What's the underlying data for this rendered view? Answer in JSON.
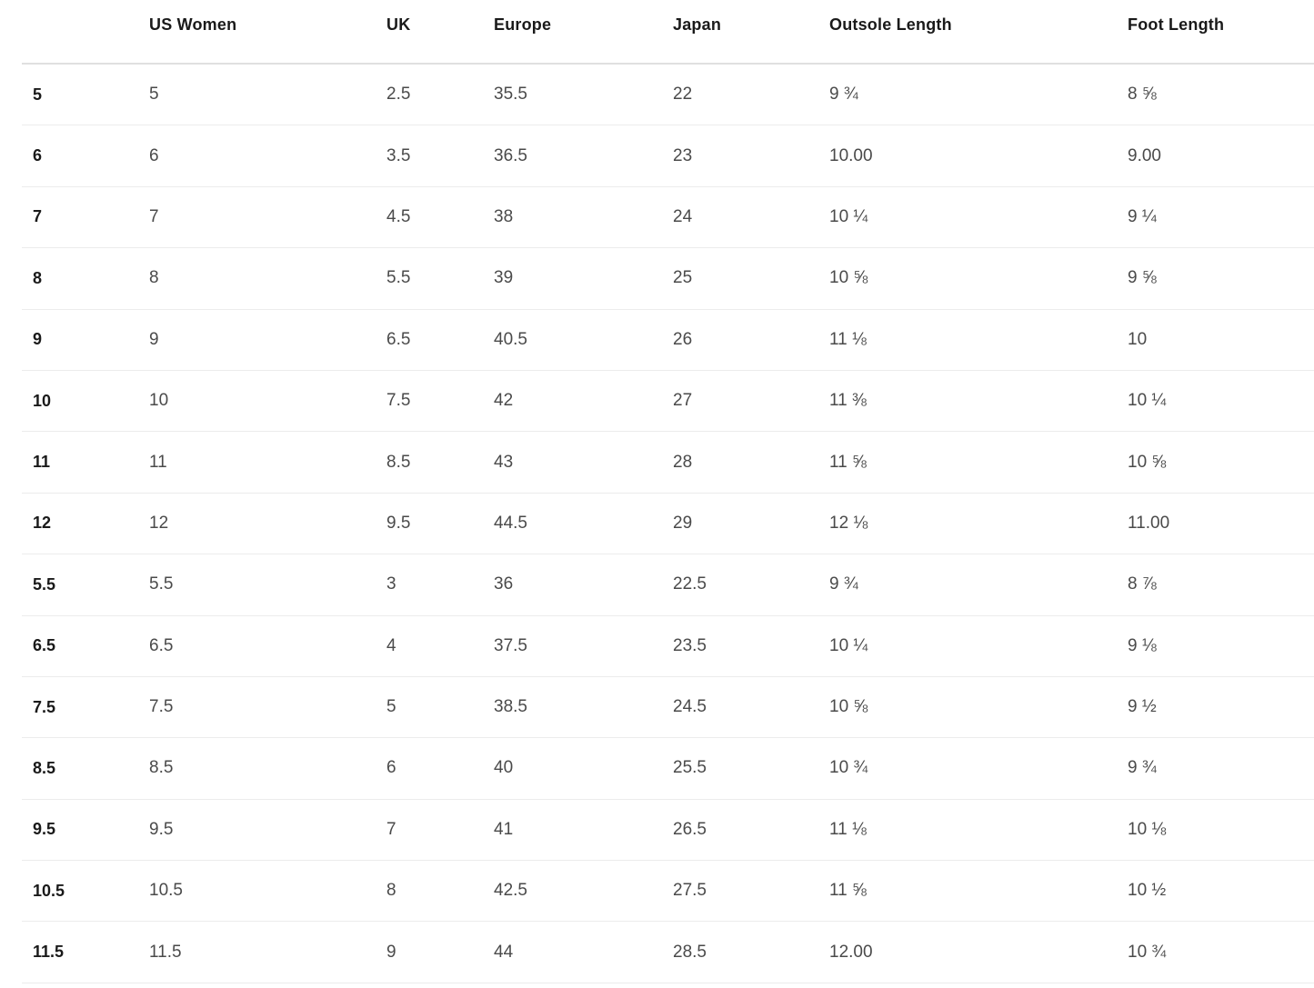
{
  "table": {
    "title": "size-conversion-chart",
    "columns": [
      "",
      "US Women",
      "UK",
      "Europe",
      "Japan",
      "Outsole Length",
      "Foot Length"
    ],
    "rows": [
      [
        "5",
        "5",
        "2.5",
        "35.5",
        "22",
        "9 ¾",
        "8 ⅝"
      ],
      [
        "6",
        "6",
        "3.5",
        "36.5",
        "23",
        "10.00",
        "9.00"
      ],
      [
        "7",
        "7",
        "4.5",
        "38",
        "24",
        "10 ¼",
        "9 ¼"
      ],
      [
        "8",
        "8",
        "5.5",
        "39",
        "25",
        "10 ⅝",
        "9 ⅝"
      ],
      [
        "9",
        "9",
        "6.5",
        "40.5",
        "26",
        "11 ⅛",
        "10"
      ],
      [
        "10",
        "10",
        "7.5",
        "42",
        "27",
        "11 ⅜",
        "10 ¼"
      ],
      [
        "11",
        "11",
        "8.5",
        "43",
        "28",
        "11 ⅝",
        "10 ⅝"
      ],
      [
        "12",
        "12",
        "9.5",
        "44.5",
        "29",
        "12 ⅛",
        "11.00"
      ],
      [
        "5.5",
        "5.5",
        "3",
        "36",
        "22.5",
        "9 ¾",
        "8 ⅞"
      ],
      [
        "6.5",
        "6.5",
        "4",
        "37.5",
        "23.5",
        "10 ¼",
        "9 ⅛"
      ],
      [
        "7.5",
        "7.5",
        "5",
        "38.5",
        "24.5",
        "10 ⅝",
        "9 ½"
      ],
      [
        "8.5",
        "8.5",
        "6",
        "40",
        "25.5",
        "10 ¾",
        "9 ¾"
      ],
      [
        "9.5",
        "9.5",
        "7",
        "41",
        "26.5",
        "11 ⅛",
        "10 ⅛"
      ],
      [
        "10.5",
        "10.5",
        "8",
        "42.5",
        "27.5",
        "11 ⅝",
        "10 ½"
      ],
      [
        "11.5",
        "11.5",
        "9",
        "44",
        "28.5",
        "12.00",
        "10 ¾"
      ]
    ]
  }
}
